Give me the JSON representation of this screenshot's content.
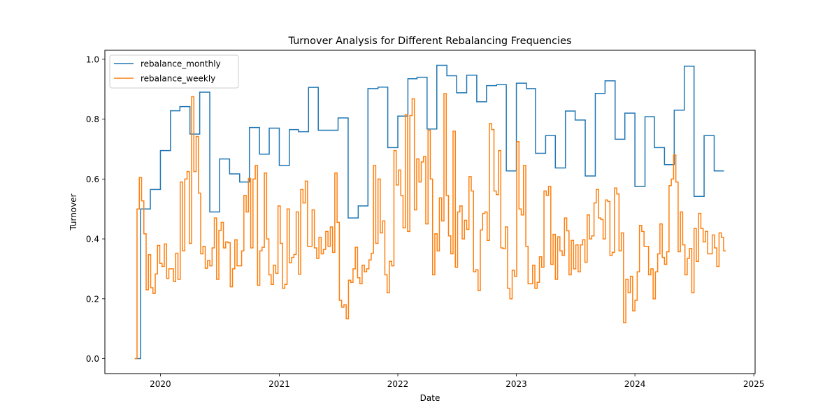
{
  "chart_data": {
    "type": "line",
    "title": "Turnover Analysis for Different Rebalancing Frequencies",
    "xlabel": "Date",
    "ylabel": "Turnover",
    "xlim": [
      "2019-07-14",
      "2025-01-05"
    ],
    "ylim": [
      -0.05,
      1.03
    ],
    "x_ticks": [
      "2020",
      "2021",
      "2022",
      "2023",
      "2024",
      "2025"
    ],
    "y_ticks": [
      "0.0",
      "0.2",
      "0.4",
      "0.6",
      "0.8",
      "1.0"
    ],
    "grid": false,
    "legend_position": "top-left",
    "series": [
      {
        "name": "rebalance_monthly",
        "color": "#1f77b4",
        "step": "post",
        "points": [
          [
            "2019-10-14",
            0.0
          ],
          [
            "2019-11-01",
            0.5
          ],
          [
            "2019-12-01",
            0.565
          ],
          [
            "2020-01-01",
            0.695
          ],
          [
            "2020-02-01",
            0.828
          ],
          [
            "2020-03-01",
            0.842
          ],
          [
            "2020-04-01",
            0.75
          ],
          [
            "2020-05-01",
            0.89
          ],
          [
            "2020-06-01",
            0.49
          ],
          [
            "2020-07-01",
            0.667
          ],
          [
            "2020-08-01",
            0.617
          ],
          [
            "2020-09-01",
            0.59
          ],
          [
            "2020-10-01",
            0.772
          ],
          [
            "2020-11-01",
            0.683
          ],
          [
            "2020-12-01",
            0.77
          ],
          [
            "2021-01-01",
            0.645
          ],
          [
            "2021-02-01",
            0.765
          ],
          [
            "2021-03-01",
            0.758
          ],
          [
            "2021-04-01",
            0.906
          ],
          [
            "2021-05-01",
            0.763
          ],
          [
            "2021-06-01",
            0.763
          ],
          [
            "2021-07-01",
            0.804
          ],
          [
            "2021-08-01",
            0.47
          ],
          [
            "2021-09-01",
            0.51
          ],
          [
            "2021-10-01",
            0.902
          ],
          [
            "2021-11-01",
            0.907
          ],
          [
            "2021-12-01",
            0.705
          ],
          [
            "2022-01-01",
            0.81
          ],
          [
            "2022-02-01",
            0.935
          ],
          [
            "2022-03-01",
            0.94
          ],
          [
            "2022-04-01",
            0.767
          ],
          [
            "2022-05-01",
            0.98
          ],
          [
            "2022-06-01",
            0.945
          ],
          [
            "2022-07-01",
            0.888
          ],
          [
            "2022-08-01",
            0.947
          ],
          [
            "2022-09-01",
            0.858
          ],
          [
            "2022-10-01",
            0.912
          ],
          [
            "2022-11-01",
            0.915
          ],
          [
            "2022-12-01",
            0.627
          ],
          [
            "2023-01-01",
            0.92
          ],
          [
            "2023-02-01",
            0.902
          ],
          [
            "2023-03-01",
            0.686
          ],
          [
            "2023-04-01",
            0.745
          ],
          [
            "2023-05-01",
            0.637
          ],
          [
            "2023-06-01",
            0.827
          ],
          [
            "2023-07-01",
            0.797
          ],
          [
            "2023-08-01",
            0.61
          ],
          [
            "2023-09-01",
            0.886
          ],
          [
            "2023-10-01",
            0.928
          ],
          [
            "2023-11-01",
            0.733
          ],
          [
            "2023-12-01",
            0.82
          ],
          [
            "2024-01-01",
            0.575
          ],
          [
            "2024-02-01",
            0.808
          ],
          [
            "2024-03-01",
            0.705
          ],
          [
            "2024-04-01",
            0.648
          ],
          [
            "2024-05-01",
            0.83
          ],
          [
            "2024-06-01",
            0.977
          ],
          [
            "2024-07-01",
            0.542
          ],
          [
            "2024-08-01",
            0.745
          ],
          [
            "2024-09-01",
            0.627
          ],
          [
            "2024-10-01",
            0.627
          ]
        ]
      },
      {
        "name": "rebalance_weekly",
        "color": "#ff7f0e",
        "step": "post",
        "start": "2019-10-14",
        "interval_days": 7,
        "values": [
          0.0,
          0.5,
          0.605,
          0.527,
          0.417,
          0.23,
          0.347,
          0.237,
          0.218,
          0.283,
          0.378,
          0.318,
          0.308,
          0.383,
          0.268,
          0.3,
          0.3,
          0.258,
          0.352,
          0.265,
          0.59,
          0.36,
          0.6,
          0.625,
          0.385,
          0.875,
          0.625,
          0.742,
          0.553,
          0.35,
          0.375,
          0.302,
          0.328,
          0.31,
          0.37,
          0.47,
          0.265,
          0.428,
          0.455,
          0.37,
          0.39,
          0.387,
          0.24,
          0.3,
          0.397,
          0.31,
          0.31,
          0.36,
          0.545,
          0.49,
          0.602,
          0.37,
          0.6,
          0.645,
          0.245,
          0.36,
          0.372,
          0.62,
          0.4,
          0.28,
          0.248,
          0.312,
          0.285,
          0.51,
          0.385,
          0.235,
          0.248,
          0.5,
          0.32,
          0.338,
          0.348,
          0.49,
          0.282,
          0.565,
          0.52,
          0.593,
          0.375,
          0.375,
          0.497,
          0.37,
          0.335,
          0.405,
          0.35,
          0.365,
          0.425,
          0.375,
          0.44,
          0.355,
          0.62,
          0.455,
          0.195,
          0.172,
          0.18,
          0.133,
          0.262,
          0.255,
          0.3,
          0.372,
          0.27,
          0.25,
          0.312,
          0.29,
          0.3,
          0.33,
          0.352,
          0.645,
          0.385,
          0.6,
          0.42,
          0.46,
          0.28,
          0.22,
          0.325,
          0.31,
          0.695,
          0.58,
          0.63,
          0.545,
          0.437,
          0.815,
          0.425,
          0.812,
          0.868,
          0.497,
          0.667,
          0.59,
          0.657,
          0.675,
          0.45,
          0.763,
          0.6,
          0.28,
          0.417,
          0.36,
          0.537,
          0.46,
          0.885,
          0.545,
          0.41,
          0.35,
          0.76,
          0.305,
          0.49,
          0.51,
          0.4,
          0.462,
          0.432,
          0.608,
          0.56,
          0.29,
          0.297,
          0.227,
          0.43,
          0.485,
          0.49,
          0.395,
          0.785,
          0.765,
          0.56,
          0.548,
          0.695,
          0.37,
          0.367,
          0.44,
          0.235,
          0.2,
          0.295,
          0.275,
          0.725,
          0.5,
          0.48,
          0.645,
          0.375,
          0.25,
          0.25,
          0.312,
          0.235,
          0.255,
          0.34,
          0.305,
          0.56,
          0.545,
          0.575,
          0.315,
          0.415,
          0.265,
          0.407,
          0.36,
          0.345,
          0.47,
          0.427,
          0.28,
          0.395,
          0.3,
          0.38,
          0.29,
          0.38,
          0.397,
          0.322,
          0.48,
          0.4,
          0.41,
          0.52,
          0.565,
          0.47,
          0.465,
          0.4,
          0.53,
          0.525,
          0.345,
          0.355,
          0.57,
          0.55,
          0.36,
          0.42,
          0.12,
          0.265,
          0.22,
          0.275,
          0.16,
          0.195,
          0.29,
          0.445,
          0.425,
          0.375,
          0.375,
          0.28,
          0.3,
          0.2,
          0.29,
          0.35,
          0.45,
          0.338,
          0.315,
          0.357,
          0.578,
          0.6,
          0.68,
          0.59,
          0.357,
          0.49,
          0.38,
          0.28,
          0.335,
          0.368,
          0.22,
          0.435,
          0.325,
          0.485,
          0.435,
          0.39,
          0.425,
          0.35,
          0.35,
          0.413,
          0.37,
          0.308,
          0.42,
          0.405,
          0.36,
          0.36
        ]
      }
    ]
  }
}
